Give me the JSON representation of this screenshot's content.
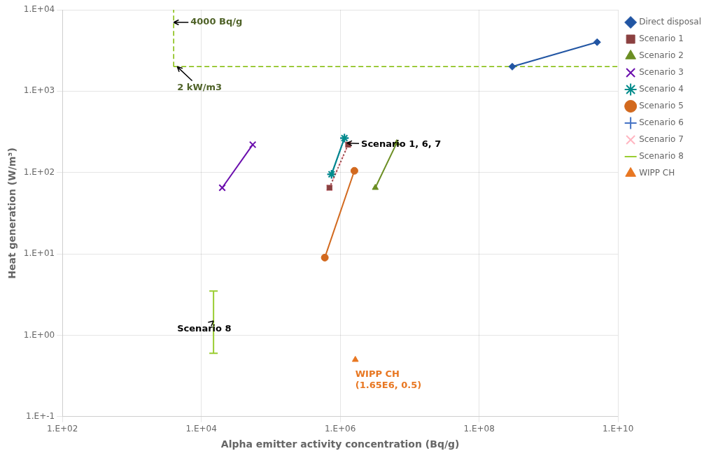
{
  "chart_data": {
    "type": "line",
    "xlabel": "Alpha emitter activity concentration (Bq/g)",
    "ylabel": "Heat generation (W/m³)",
    "log": true,
    "xlim": [
      100,
      10000000000
    ],
    "ylim": [
      0.1,
      10000
    ],
    "xticks": [
      {
        "value": 100,
        "label": "1.E+02"
      },
      {
        "value": 10000,
        "label": "1.E+04"
      },
      {
        "value": 1000000,
        "label": "1.E+06"
      },
      {
        "value": 100000000,
        "label": "1.E+08"
      },
      {
        "value": 10000000000,
        "label": "1.E+10"
      }
    ],
    "yticks": [
      {
        "value": 0.1,
        "label": "1.E+-1"
      },
      {
        "value": 1,
        "label": "1.E+00"
      },
      {
        "value": 10,
        "label": "1.E+01"
      },
      {
        "value": 100,
        "label": "1.E+02"
      },
      {
        "value": 1000,
        "label": "1.E+03"
      },
      {
        "value": 10000,
        "label": "1.E+04"
      }
    ],
    "grid": true,
    "legend": "right",
    "series": [
      {
        "name": "Direct disposal",
        "color": "#2155a3",
        "marker": "diamond",
        "line_style": "solid",
        "x": [
          300000000,
          5000000000
        ],
        "values": [
          2000,
          4000
        ]
      },
      {
        "name": "Scenario 1",
        "color": "#8B4040",
        "marker": "square",
        "line_style": "dotted",
        "x": [
          700000,
          1300000
        ],
        "values": [
          65,
          220
        ]
      },
      {
        "name": "Scenario 2",
        "color": "#6B8E23",
        "marker": "triangle",
        "line_style": "solid",
        "x": [
          3200000,
          6500000
        ],
        "values": [
          65,
          230
        ]
      },
      {
        "name": "Scenario 3",
        "color": "#6A0DAD",
        "marker": "x",
        "line_style": "solid",
        "x": [
          20000,
          55000
        ],
        "values": [
          65,
          220
        ]
      },
      {
        "name": "Scenario 4",
        "color": "#008B8B",
        "marker": "star",
        "line_style": "solid",
        "x": [
          750000,
          1150000
        ],
        "values": [
          95,
          265
        ]
      },
      {
        "name": "Scenario 5",
        "color": "#D2691E",
        "marker": "circle",
        "line_style": "solid",
        "x": [
          600000,
          1600000
        ],
        "values": [
          9,
          105
        ]
      },
      {
        "name": "Scenario 6",
        "color": "#4472C4",
        "marker": "plus",
        "line_style": "solid",
        "x": [
          750000,
          1150000
        ],
        "values": [
          95,
          265
        ]
      },
      {
        "name": "Scenario 7",
        "color": "#FFB6C1",
        "marker": "x",
        "line_style": "dashed",
        "x": [
          700000,
          1300000
        ],
        "values": [
          65,
          220
        ]
      },
      {
        "name": "Scenario 8",
        "color": "#9ACD32",
        "marker": "hline",
        "line_style": "solid",
        "x": [
          15000,
          15000
        ],
        "values": [
          0.6,
          3.5
        ]
      },
      {
        "name": "WIPP CH",
        "color": "#E87722",
        "marker": "triangle",
        "type": "scatter",
        "x": [
          1650000
        ],
        "values": [
          0.5
        ]
      }
    ],
    "reference_lines": [
      {
        "x": [
          4000,
          4000
        ],
        "y": [
          2000,
          10000
        ],
        "color": "#7FBA00",
        "line_style": "dashed"
      },
      {
        "x": [
          4000,
          10000000000
        ],
        "y": [
          2000,
          2000
        ],
        "color": "#7FBA00",
        "line_style": "dashed"
      }
    ],
    "annotations": [
      {
        "text": "4000 Bq/g",
        "x": 7000,
        "y": 7000,
        "arrow_to": [
          4000,
          7000
        ],
        "color": "#4F6228"
      },
      {
        "text": "2 kW/m3",
        "x": 4500,
        "y": 1100,
        "arrow_to": [
          4500,
          2000
        ],
        "color": "#4F6228"
      },
      {
        "text": "Scenario 8",
        "x": 4500,
        "y": 1.2,
        "arrow_to": [
          15000,
          1.5
        ],
        "color": "#000000"
      },
      {
        "text": "Scenario 1, 6, 7",
        "x": 2000000,
        "y": 220,
        "arrow_to": [
          1250000,
          230
        ],
        "color": "#000000"
      },
      {
        "text": "WIPP CH\n(1.65E6, 0.5)",
        "x": 1650000,
        "y": 0.28,
        "color": "#E87722"
      }
    ]
  }
}
